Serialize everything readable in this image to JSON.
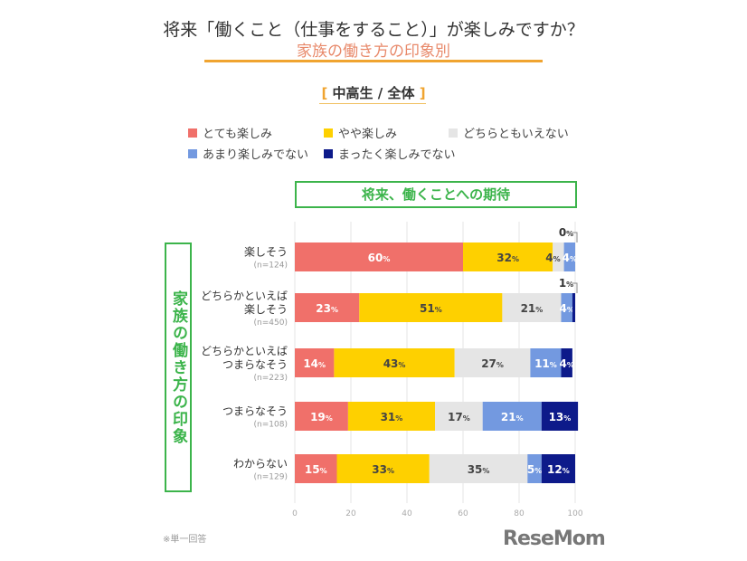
{
  "title": "将来「働くこと（仕事をすること）」が楽しみですか？",
  "subtitle": "家族の働き方の印象別",
  "segment": {
    "open": "[",
    "label": "中高生 / 全体",
    "close": "]"
  },
  "header_box": "将来、働くことへの期待",
  "side_label": "家族の働き方の印象",
  "note": "※単一回答",
  "logo": "ReseMom",
  "colors": {
    "とても楽しみ": "#f0706a",
    "やや楽しみ": "#fed000",
    "どちらともいえない": "#e5e5e5",
    "あまり楽しみでない": "#7399e0",
    "まったく楽しみでない": "#0d1a8a",
    "green": "#3cb44b",
    "orange": "#f0a430"
  },
  "chart_data": {
    "type": "bar",
    "orientation": "horizontal",
    "stacked": true,
    "xlim": [
      0,
      100
    ],
    "xticks": [
      0,
      20,
      40,
      60,
      80,
      100
    ],
    "grid": true,
    "legend": "top",
    "unit": "%",
    "categories": [
      {
        "label": [
          "楽しそう"
        ],
        "n": "(n=124)"
      },
      {
        "label": [
          "どちらかといえば",
          "楽しそう"
        ],
        "n": "(n=450)"
      },
      {
        "label": [
          "どちらかといえば",
          "つまらなそう"
        ],
        "n": "(n=223)"
      },
      {
        "label": [
          "つまらなそう"
        ],
        "n": "(n=108)"
      },
      {
        "label": [
          "わからない"
        ],
        "n": "(n=129)"
      }
    ],
    "series": [
      {
        "name": "とても楽しみ",
        "values": [
          60,
          23,
          14,
          19,
          15
        ]
      },
      {
        "name": "やや楽しみ",
        "values": [
          32,
          51,
          43,
          31,
          33
        ]
      },
      {
        "name": "どちらともいえない",
        "values": [
          4,
          21,
          27,
          17,
          35
        ]
      },
      {
        "name": "あまり楽しみでない",
        "values": [
          4,
          4,
          11,
          21,
          5
        ]
      },
      {
        "name": "まったく楽しみでない",
        "values": [
          0,
          1,
          4,
          13,
          12
        ]
      }
    ]
  }
}
